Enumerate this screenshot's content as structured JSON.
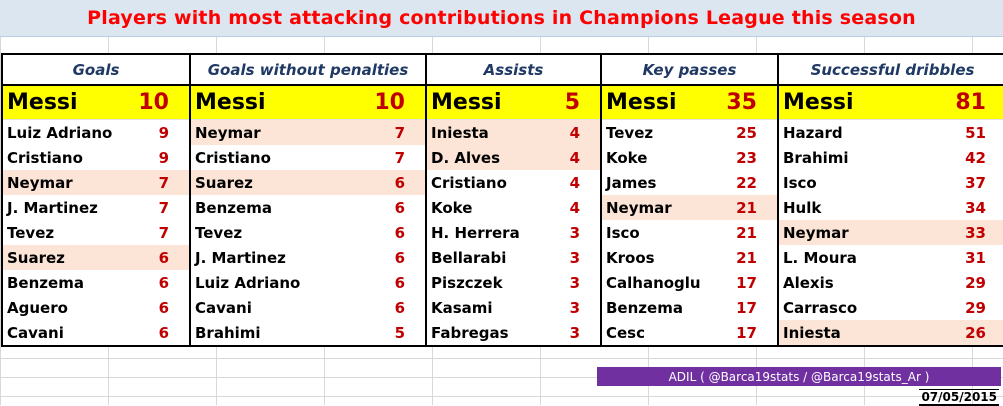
{
  "title": "Players with most attacking contributions in Champions League this season",
  "credit": "ADIL ( @Barca19stats / @Barca19stats_Ar )",
  "date": "07/05/2015",
  "colors": {
    "title": "#ff0000",
    "highlight_top": "#ffff00",
    "highlight_row": "#fce4d6",
    "value": "#c00000",
    "header": "#1f3864",
    "credit_bg": "#7030a0"
  },
  "columns": [
    {
      "header": "Goals",
      "top": {
        "name": "Messi",
        "value": "10"
      },
      "rows": [
        {
          "name": "Luiz Adriano",
          "value": "9",
          "highlight": false
        },
        {
          "name": "Cristiano",
          "value": "9",
          "highlight": false
        },
        {
          "name": "Neymar",
          "value": "7",
          "highlight": true
        },
        {
          "name": "J. Martinez",
          "value": "7",
          "highlight": false
        },
        {
          "name": "Tevez",
          "value": "7",
          "highlight": false
        },
        {
          "name": "Suarez",
          "value": "6",
          "highlight": true
        },
        {
          "name": "Benzema",
          "value": "6",
          "highlight": false
        },
        {
          "name": "Aguero",
          "value": "6",
          "highlight": false
        },
        {
          "name": "Cavani",
          "value": "6",
          "highlight": false
        }
      ]
    },
    {
      "header": "Goals without penalties",
      "top": {
        "name": "Messi",
        "value": "10"
      },
      "rows": [
        {
          "name": "Neymar",
          "value": "7",
          "highlight": true
        },
        {
          "name": "Cristiano",
          "value": "7",
          "highlight": false
        },
        {
          "name": "Suarez",
          "value": "6",
          "highlight": true
        },
        {
          "name": "Benzema",
          "value": "6",
          "highlight": false
        },
        {
          "name": "Tevez",
          "value": "6",
          "highlight": false
        },
        {
          "name": "J. Martinez",
          "value": "6",
          "highlight": false
        },
        {
          "name": "Luiz Adriano",
          "value": "6",
          "highlight": false
        },
        {
          "name": "Cavani",
          "value": "6",
          "highlight": false
        },
        {
          "name": "Brahimi",
          "value": "5",
          "highlight": false
        }
      ]
    },
    {
      "header": "Assists",
      "top": {
        "name": "Messi",
        "value": "5"
      },
      "rows": [
        {
          "name": "Iniesta",
          "value": "4",
          "highlight": true
        },
        {
          "name": "D. Alves",
          "value": "4",
          "highlight": true
        },
        {
          "name": "Cristiano",
          "value": "4",
          "highlight": false
        },
        {
          "name": "Koke",
          "value": "4",
          "highlight": false
        },
        {
          "name": "H. Herrera",
          "value": "3",
          "highlight": false
        },
        {
          "name": "Bellarabi",
          "value": "3",
          "highlight": false
        },
        {
          "name": "Piszczek",
          "value": "3",
          "highlight": false
        },
        {
          "name": "Kasami",
          "value": "3",
          "highlight": false
        },
        {
          "name": "Fabregas",
          "value": "3",
          "highlight": false
        }
      ]
    },
    {
      "header": "Key passes",
      "top": {
        "name": "Messi",
        "value": "35"
      },
      "rows": [
        {
          "name": "Tevez",
          "value": "25",
          "highlight": false
        },
        {
          "name": "Koke",
          "value": "23",
          "highlight": false
        },
        {
          "name": "James",
          "value": "22",
          "highlight": false
        },
        {
          "name": "Neymar",
          "value": "21",
          "highlight": true
        },
        {
          "name": "Isco",
          "value": "21",
          "highlight": false
        },
        {
          "name": "Kroos",
          "value": "21",
          "highlight": false
        },
        {
          "name": "Calhanoglu",
          "value": "17",
          "highlight": false
        },
        {
          "name": "Benzema",
          "value": "17",
          "highlight": false
        },
        {
          "name": "Cesc",
          "value": "17",
          "highlight": false
        }
      ]
    },
    {
      "header": "Successful dribbles",
      "top": {
        "name": "Messi",
        "value": "81"
      },
      "rows": [
        {
          "name": "Hazard",
          "value": "51",
          "highlight": false
        },
        {
          "name": "Brahimi",
          "value": "42",
          "highlight": false
        },
        {
          "name": "Isco",
          "value": "37",
          "highlight": false
        },
        {
          "name": "Hulk",
          "value": "34",
          "highlight": false
        },
        {
          "name": "Neymar",
          "value": "33",
          "highlight": true
        },
        {
          "name": "L. Moura",
          "value": "31",
          "highlight": false
        },
        {
          "name": "Alexis",
          "value": "29",
          "highlight": false
        },
        {
          "name": "Carrasco",
          "value": "29",
          "highlight": false
        },
        {
          "name": "Iniesta",
          "value": "26",
          "highlight": true
        }
      ]
    }
  ]
}
